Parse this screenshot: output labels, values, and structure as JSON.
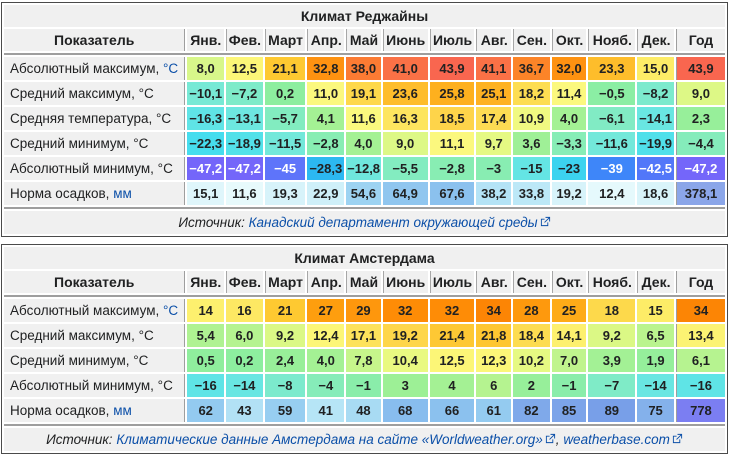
{
  "palette": {
    "outer_border": "#4a4a4a",
    "band": "#9e9e9e",
    "header_bg": "#f0f0f0",
    "link_blue": "#0b4fa8",
    "white_text": "#ffffff",
    "dark_text": "#202122"
  },
  "months": [
    "Янв.",
    "Фев.",
    "Март",
    "Апр.",
    "Май",
    "Июнь",
    "Июль",
    "Авг.",
    "Сен.",
    "Окт.",
    "Нояб.",
    "Дек."
  ],
  "year_label": "Год",
  "indicator_label": "Показатель",
  "source_prefix": "Источник: ",
  "tables": [
    {
      "id": "climate-table-regina",
      "title": "Климат Реджайны",
      "rows": [
        {
          "label": "Абсолютный максимум, ",
          "unit": "°C",
          "unit_link": true,
          "values": [
            "8,0",
            "12,5",
            "21,1",
            "32,8",
            "38,0",
            "41,0",
            "43,9",
            "41,1",
            "36,7",
            "32,0",
            "23,3",
            "15,0",
            "43,9"
          ],
          "colors": [
            "#d8f78a",
            "#fcf678",
            "#fec931",
            "#fe9211",
            "#fb7b33",
            "#fa7146",
            "#f9664f",
            "#fa7146",
            "#fc8428",
            "#fe9211",
            "#febd2b",
            "#fdec67",
            "#f9664f"
          ],
          "white": []
        },
        {
          "label": "Средний максимум, ",
          "unit": "°C",
          "unit_link": false,
          "values": [
            "−10,1",
            "−7,2",
            "0,2",
            "11,0",
            "19,1",
            "23,6",
            "25,8",
            "25,1",
            "18,2",
            "11,4",
            "−0,5",
            "−8,2",
            "9,0"
          ],
          "colors": [
            "#77e9d5",
            "#7eebc9",
            "#8dee9f",
            "#fbf87e",
            "#fed84b",
            "#febd2b",
            "#feb01e",
            "#feb222",
            "#fddd52",
            "#fbf87e",
            "#8beea4",
            "#7ceacd",
            "#ddf886"
          ],
          "white": []
        },
        {
          "label": "Средняя температура, ",
          "unit": "°C",
          "unit_link": false,
          "values": [
            "−16,3",
            "−13,1",
            "−5,7",
            "4,1",
            "11,6",
            "16,3",
            "18,5",
            "17,4",
            "10,9",
            "4,0",
            "−6,1",
            "−14,1",
            "2,3"
          ],
          "colors": [
            "#5fe4e6",
            "#6de7e0",
            "#82ecc0",
            "#a4f194",
            "#fbf87e",
            "#fde55f",
            "#fed44a",
            "#fddb53",
            "#f0f981",
            "#a4f194",
            "#81ebc4",
            "#69e6e2",
            "#97ef9a"
          ],
          "white": []
        },
        {
          "label": "Средний минимум, ",
          "unit": "°C",
          "unit_link": false,
          "values": [
            "−22,3",
            "−18,9",
            "−11,5",
            "−2,8",
            "4,0",
            "9,0",
            "11,1",
            "9,7",
            "3,6",
            "−3,3",
            "−11,6",
            "−19,9",
            "−4,4"
          ],
          "colors": [
            "#46ddee",
            "#53e1e9",
            "#73e8da",
            "#88edb3",
            "#a4f194",
            "#ddf886",
            "#fbf87e",
            "#e5f983",
            "#9ff097",
            "#87edb6",
            "#73e8da",
            "#50e0ea",
            "#85ecbb"
          ],
          "white": []
        },
        {
          "label": "Абсолютный минимум, ",
          "unit": "°C",
          "unit_link": false,
          "values": [
            "−47,2",
            "−47,2",
            "−45",
            "−28,3",
            "−12,8",
            "−5,5",
            "−2,8",
            "−3",
            "−15",
            "−23",
            "−39",
            "−42,5",
            "−47,2"
          ],
          "colors": [
            "#7466fa",
            "#7466fa",
            "#5e74fa",
            "#2cb8f1",
            "#6fe7dd",
            "#83ecc0",
            "#88edb3",
            "#88edb2",
            "#64e5e4",
            "#3cd3ef",
            "#3e86f9",
            "#5277f9",
            "#7466fa"
          ],
          "white": [
            0,
            1,
            2,
            10,
            11,
            12
          ]
        },
        {
          "label": "Норма осадков, ",
          "unit": "мм",
          "unit_link": true,
          "values": [
            "15,1",
            "11,6",
            "19,3",
            "22,9",
            "54,6",
            "64,9",
            "67,6",
            "38,2",
            "33,8",
            "19,2",
            "12,4",
            "18,6",
            "378,1"
          ],
          "colors": [
            "#dff6fb",
            "#e7fafc",
            "#d7f3fa",
            "#cff0f9",
            "#9dd3f2",
            "#90c6ef",
            "#8bc1ee",
            "#b4e3f6",
            "#bce8f7",
            "#d7f3fa",
            "#e5f9fc",
            "#d9f4fa",
            "#8ba6e9"
          ],
          "white": []
        }
      ],
      "source_parts": [
        {
          "type": "text",
          "text": "Источник: "
        },
        {
          "type": "link",
          "text": "Канадский департамент окружающей среды"
        },
        {
          "type": "icon"
        }
      ]
    },
    {
      "id": "climate-table-amsterdam",
      "title": "Климат Амстердама",
      "rows": [
        {
          "label": "Абсолютный максимум, ",
          "unit": "°C",
          "unit_link": true,
          "values": [
            "14",
            "16",
            "21",
            "27",
            "29",
            "32",
            "32",
            "34",
            "28",
            "25",
            "18",
            "15",
            "34"
          ],
          "colors": [
            "#fdf06e",
            "#fde863",
            "#fec931",
            "#fe9e0e",
            "#fe970d",
            "#fe8c06",
            "#fe8c06",
            "#fc8505",
            "#fe990d",
            "#feab18",
            "#fdd94b",
            "#fdec67",
            "#fc8505"
          ],
          "white": []
        },
        {
          "label": "Средний максимум, ",
          "unit": "°C",
          "unit_link": false,
          "values": [
            "5,4",
            "6,0",
            "9,2",
            "12,4",
            "17,1",
            "19,2",
            "21,4",
            "21,8",
            "18,4",
            "14,1",
            "9,2",
            "6,5",
            "13,4"
          ],
          "colors": [
            "#aff292",
            "#b5f390",
            "#dbf885",
            "#fcf677",
            "#fde25b",
            "#fed64a",
            "#fec834",
            "#fec631",
            "#fddc51",
            "#fdf06e",
            "#dbf885",
            "#baf48e",
            "#fcf373"
          ],
          "white": []
        },
        {
          "label": "Средний минимум, ",
          "unit": "°C",
          "unit_link": false,
          "values": [
            "0,5",
            "0,2",
            "2,4",
            "4,0",
            "7,8",
            "10,4",
            "12,5",
            "12,3",
            "10,2",
            "7,0",
            "3,9",
            "1,9",
            "6,1"
          ],
          "colors": [
            "#8fee9d",
            "#8dee9f",
            "#98ef99",
            "#a4f194",
            "#c6f58b",
            "#e9f981",
            "#fcf677",
            "#fcf678",
            "#e6f982",
            "#c0f48d",
            "#a3f195",
            "#95ef9b",
            "#b6f390"
          ],
          "white": []
        },
        {
          "label": "Абсолютный минимум, ",
          "unit": "°C",
          "unit_link": false,
          "values": [
            "−16",
            "−14",
            "−8",
            "−4",
            "−1",
            "3",
            "4",
            "6",
            "2",
            "−1",
            "−7",
            "−14",
            "−16"
          ],
          "colors": [
            "#5fe4e6",
            "#69e6e2",
            "#7ceacd",
            "#86ecb9",
            "#8aedaa",
            "#9df096",
            "#a4f194",
            "#b5f390",
            "#97ef9a",
            "#8aedaa",
            "#7febc7",
            "#69e6e2",
            "#5fe4e6"
          ],
          "white": []
        },
        {
          "label": "Норма осадков, ",
          "unit": "мм",
          "unit_link": true,
          "values": [
            "62",
            "43",
            "59",
            "41",
            "48",
            "68",
            "66",
            "61",
            "82",
            "85",
            "89",
            "75",
            "778"
          ],
          "colors": [
            "#93caf0",
            "#b2e1f5",
            "#97cef1",
            "#b6e5f6",
            "#a8dbf3",
            "#88bdee",
            "#8bc1ee",
            "#94cbf0",
            "#7fa9ea",
            "#7ca4e9",
            "#789fe8",
            "#84b1eb",
            "#7b7ef2"
          ],
          "white": []
        }
      ],
      "source_parts": [
        {
          "type": "text",
          "text": "Источник: "
        },
        {
          "type": "link",
          "text": "Климатические данные Амстердама на сайте «Worldweather.org»"
        },
        {
          "type": "icon"
        },
        {
          "type": "text",
          "text": ", "
        },
        {
          "type": "link",
          "text": "weatherbase.com"
        },
        {
          "type": "icon"
        }
      ]
    }
  ],
  "chart_data": [
    {
      "type": "table",
      "title": "Климат Реджайны",
      "categories": [
        "Янв.",
        "Фев.",
        "Март",
        "Апр.",
        "Май",
        "Июнь",
        "Июль",
        "Авг.",
        "Сен.",
        "Окт.",
        "Нояб.",
        "Дек.",
        "Год"
      ],
      "series": [
        {
          "name": "Абсолютный максимум, °C",
          "values": [
            8.0,
            12.5,
            21.1,
            32.8,
            38.0,
            41.0,
            43.9,
            41.1,
            36.7,
            32.0,
            23.3,
            15.0,
            43.9
          ]
        },
        {
          "name": "Средний максимум, °C",
          "values": [
            -10.1,
            -7.2,
            0.2,
            11.0,
            19.1,
            23.6,
            25.8,
            25.1,
            18.2,
            11.4,
            -0.5,
            -8.2,
            9.0
          ]
        },
        {
          "name": "Средняя температура, °C",
          "values": [
            -16.3,
            -13.1,
            -5.7,
            4.1,
            11.6,
            16.3,
            18.5,
            17.4,
            10.9,
            4.0,
            -6.1,
            -14.1,
            2.3
          ]
        },
        {
          "name": "Средний минимум, °C",
          "values": [
            -22.3,
            -18.9,
            -11.5,
            -2.8,
            4.0,
            9.0,
            11.1,
            9.7,
            3.6,
            -3.3,
            -11.6,
            -19.9,
            -4.4
          ]
        },
        {
          "name": "Абсолютный минимум, °C",
          "values": [
            -47.2,
            -47.2,
            -45,
            -28.3,
            -12.8,
            -5.5,
            -2.8,
            -3,
            -15,
            -23,
            -39,
            -42.5,
            -47.2
          ]
        },
        {
          "name": "Норма осадков, мм",
          "values": [
            15.1,
            11.6,
            19.3,
            22.9,
            54.6,
            64.9,
            67.6,
            38.2,
            33.8,
            19.2,
            12.4,
            18.6,
            378.1
          ]
        }
      ],
      "source": "Канадский департамент окружающей среды"
    },
    {
      "type": "table",
      "title": "Климат Амстердама",
      "categories": [
        "Янв.",
        "Фев.",
        "Март",
        "Апр.",
        "Май",
        "Июнь",
        "Июль",
        "Авг.",
        "Сен.",
        "Окт.",
        "Нояб.",
        "Дек.",
        "Год"
      ],
      "series": [
        {
          "name": "Абсолютный максимум, °C",
          "values": [
            14,
            16,
            21,
            27,
            29,
            32,
            32,
            34,
            28,
            25,
            18,
            15,
            34
          ]
        },
        {
          "name": "Средний максимум, °C",
          "values": [
            5.4,
            6.0,
            9.2,
            12.4,
            17.1,
            19.2,
            21.4,
            21.8,
            18.4,
            14.1,
            9.2,
            6.5,
            13.4
          ]
        },
        {
          "name": "Средний минимум, °C",
          "values": [
            0.5,
            0.2,
            2.4,
            4.0,
            7.8,
            10.4,
            12.5,
            12.3,
            10.2,
            7.0,
            3.9,
            1.9,
            6.1
          ]
        },
        {
          "name": "Абсолютный минимум, °C",
          "values": [
            -16,
            -14,
            -8,
            -4,
            -1,
            3,
            4,
            6,
            2,
            -1,
            -7,
            -14,
            -16
          ]
        },
        {
          "name": "Норма осадков, мм",
          "values": [
            62,
            43,
            59,
            41,
            48,
            68,
            66,
            61,
            82,
            85,
            89,
            75,
            778
          ]
        }
      ],
      "source": "Климатические данные Амстердама на сайте «Worldweather.org», weatherbase.com"
    }
  ]
}
